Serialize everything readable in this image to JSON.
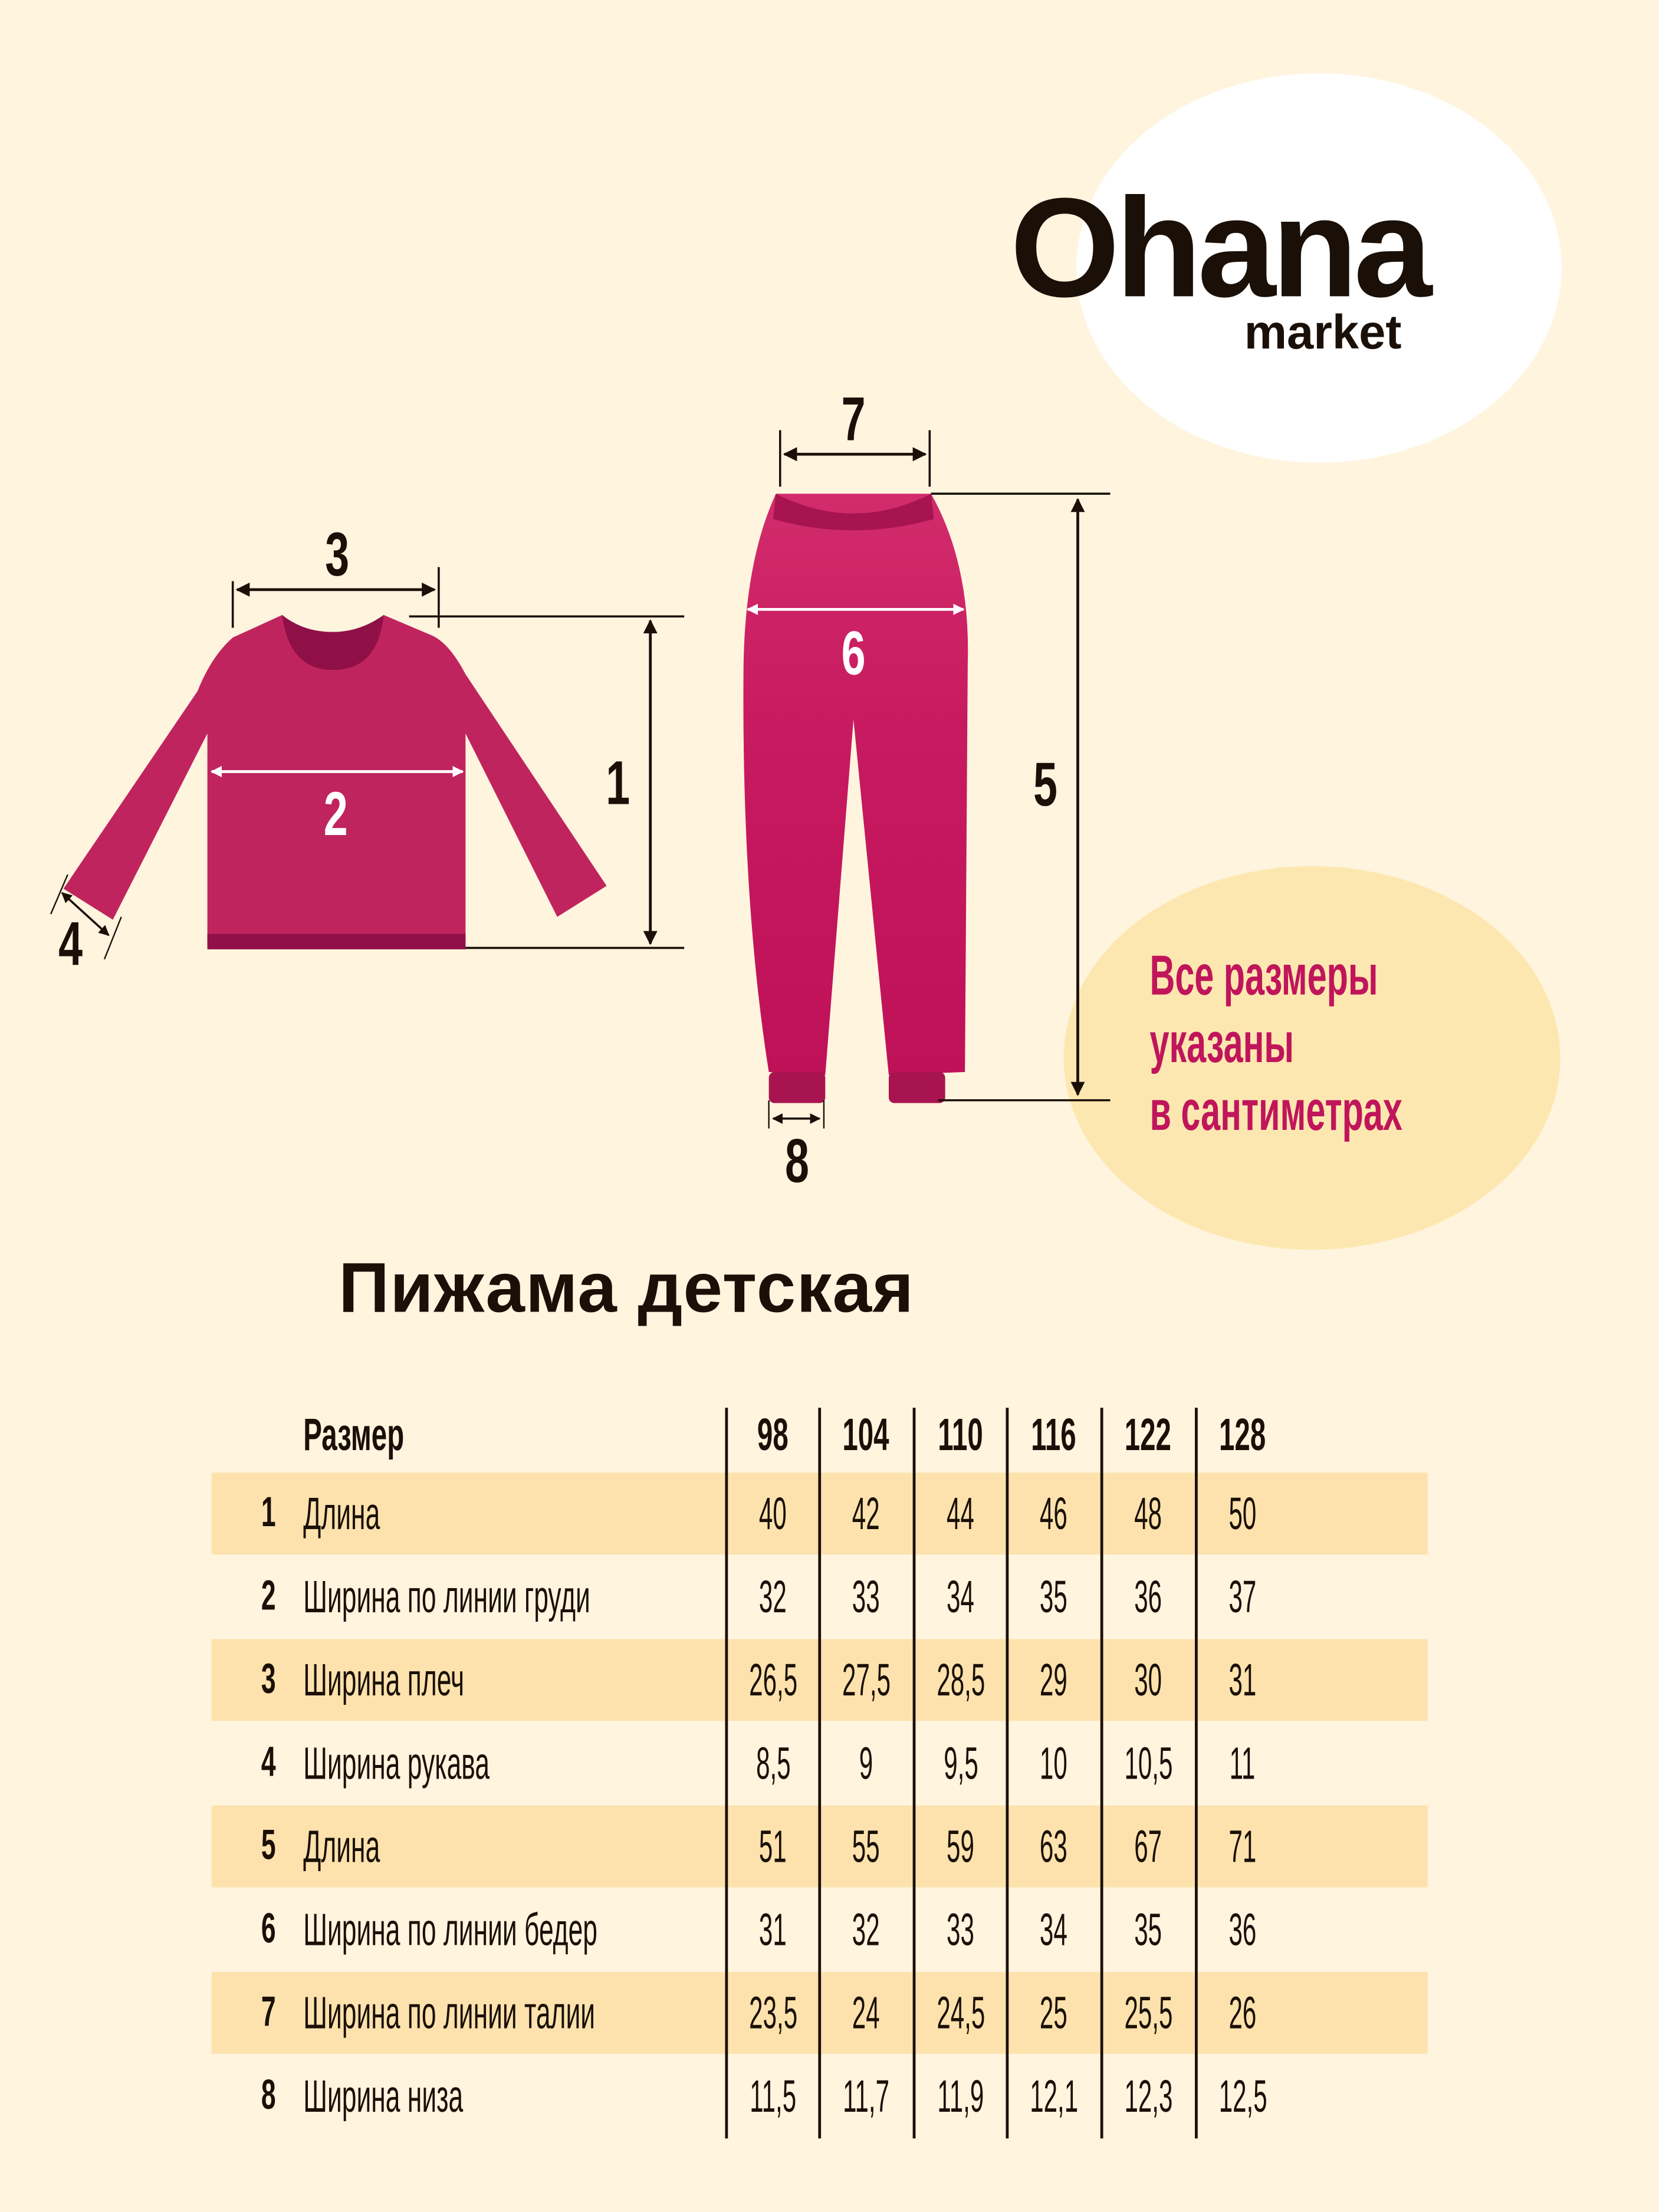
{
  "brand": {
    "name": "Ohana",
    "sub": "market"
  },
  "note": [
    "Все размеры",
    "указаны",
    "в сантиметрах"
  ],
  "title": "Пижама детская",
  "diagram_labels": {
    "m1": "1",
    "m2": "2",
    "m3": "3",
    "m4": "4",
    "m5": "5",
    "m6": "6",
    "m7": "7",
    "m8": "8"
  },
  "colors": {
    "background": "#fff4de",
    "band": "#fde2ad",
    "garment": "#c0245f",
    "note_text": "#c0155b",
    "note_blob": "#fde7b0"
  },
  "table": {
    "header_label": "Размер",
    "sizes": [
      "98",
      "104",
      "110",
      "116",
      "122",
      "128"
    ],
    "rows": [
      {
        "num": "1",
        "label": "Длина",
        "values": [
          "40",
          "42",
          "44",
          "46",
          "48",
          "50"
        ]
      },
      {
        "num": "2",
        "label": "Ширина по линии груди",
        "values": [
          "32",
          "33",
          "34",
          "35",
          "36",
          "37"
        ]
      },
      {
        "num": "3",
        "label": "Ширина плеч",
        "values": [
          "26,5",
          "27,5",
          "28,5",
          "29",
          "30",
          "31"
        ]
      },
      {
        "num": "4",
        "label": "Ширина рукава",
        "values": [
          "8,5",
          "9",
          "9,5",
          "10",
          "10,5",
          "11"
        ]
      },
      {
        "num": "5",
        "label": "Длина",
        "values": [
          "51",
          "55",
          "59",
          "63",
          "67",
          "71"
        ]
      },
      {
        "num": "6",
        "label": "Ширина по линии бедер",
        "values": [
          "31",
          "32",
          "33",
          "34",
          "35",
          "36"
        ]
      },
      {
        "num": "7",
        "label": "Ширина по линии талии",
        "values": [
          "23,5",
          "24",
          "24,5",
          "25",
          "25,5",
          "26"
        ]
      },
      {
        "num": "8",
        "label": "Ширина низа",
        "values": [
          "11,5",
          "11,7",
          "11,9",
          "12,1",
          "12,3",
          "12,5"
        ]
      }
    ]
  }
}
